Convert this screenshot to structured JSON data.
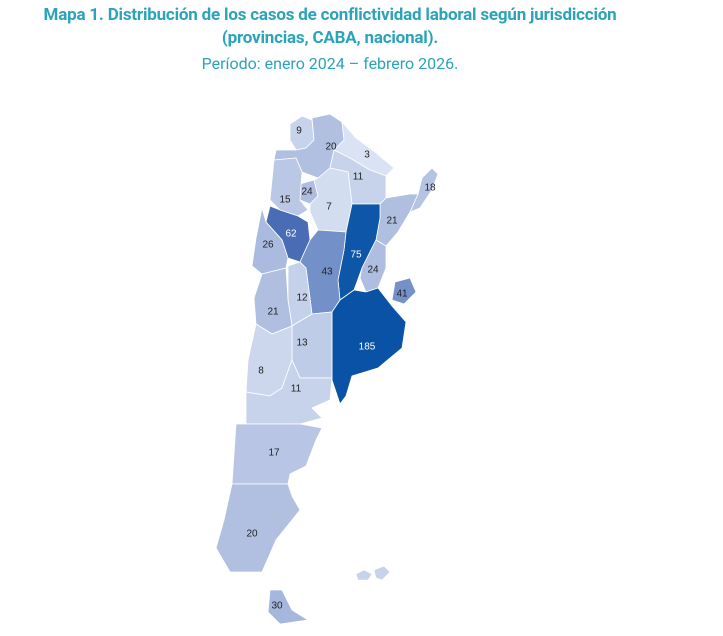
{
  "title": "Mapa 1. Distribución de los casos de conflictividad laboral según jurisdicción (provincias, CABA, nacional).",
  "subtitle": "Período: enero 2024 – febrero 2026.",
  "regions": [
    {
      "value": 9,
      "color": "#c7d3eb"
    },
    {
      "value": 20,
      "color": "#b1c0e1"
    },
    {
      "value": 3,
      "color": "#dae3f3"
    },
    {
      "value": 11,
      "color": "#c7d3eb"
    },
    {
      "value": 18,
      "color": "#b6c4e3"
    },
    {
      "value": 24,
      "color": "#aebde0"
    },
    {
      "value": 15,
      "color": "#bac7e5"
    },
    {
      "value": 7,
      "color": "#d3ddf0"
    },
    {
      "value": 21,
      "color": "#b0bfe0"
    },
    {
      "value": 62,
      "color": "#4a6cb5"
    },
    {
      "value": 26,
      "color": "#abbbdf"
    },
    {
      "value": 75,
      "color": "#0d56a8"
    },
    {
      "value": 43,
      "color": "#7390c9"
    },
    {
      "value": 24,
      "color": "#aebde0"
    },
    {
      "value": 41,
      "color": "#7591c9"
    },
    {
      "value": 12,
      "color": "#c5d1ea"
    },
    {
      "value": 21,
      "color": "#b0bfe0"
    },
    {
      "value": 185,
      "color": "#0a52a5"
    },
    {
      "value": 13,
      "color": "#bfcce8"
    },
    {
      "value": 8,
      "color": "#ccd7ed"
    },
    {
      "value": 11,
      "color": "#c7d3eb"
    },
    {
      "value": 17,
      "color": "#b8c5e4"
    },
    {
      "value": 20,
      "color": "#b1c0e1"
    },
    {
      "value": 30,
      "color": "#a6b7dd"
    }
  ]
}
